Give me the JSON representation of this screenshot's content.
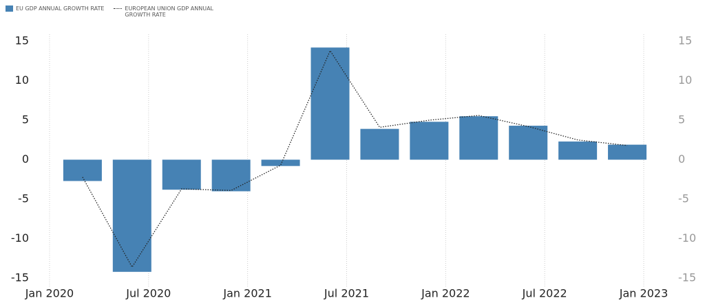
{
  "chart_data": {
    "type": "bar",
    "x": [
      "2020-03",
      "2020-06",
      "2020-09",
      "2020-12",
      "2021-03",
      "2021-06",
      "2021-09",
      "2021-12",
      "2022-03",
      "2022-06",
      "2022-09",
      "2022-12"
    ],
    "series": [
      {
        "name": "EU GDP ANNUAL GROWTH RATE",
        "type": "bar",
        "color": "#4682b4",
        "values": [
          -2.7,
          -14.2,
          -3.8,
          -4.0,
          -0.8,
          14.2,
          3.9,
          4.8,
          5.5,
          4.3,
          2.3,
          1.9
        ]
      },
      {
        "name": "EUROPEAN UNION GDP ANNUAL GROWTH RATE",
        "type": "line",
        "axis": "y2",
        "color": "#222222",
        "values": [
          -2.2,
          -13.6,
          -3.7,
          -3.9,
          -0.7,
          13.8,
          4.1,
          5.0,
          5.6,
          4.2,
          2.5,
          1.8
        ]
      }
    ],
    "xlim": [
      "2019-11",
      "2023-02"
    ],
    "xticks": [
      {
        "value": "2020-01",
        "label": "Jan 2020"
      },
      {
        "value": "2020-07",
        "label": "Jul 2020"
      },
      {
        "value": "2021-01",
        "label": "Jan 2021"
      },
      {
        "value": "2021-07",
        "label": "Jul 2021"
      },
      {
        "value": "2022-01",
        "label": "Jan 2022"
      },
      {
        "value": "2022-07",
        "label": "Jul 2022"
      },
      {
        "value": "2023-01",
        "label": "Jan 2023"
      }
    ],
    "ylim": [
      -15,
      15
    ],
    "yticks": [
      -15,
      -10,
      -5,
      0,
      5,
      10,
      15
    ],
    "y2lim": [
      -15,
      15
    ],
    "y2ticks": [
      -15,
      -10,
      -5,
      0,
      5,
      10,
      15
    ],
    "grid": "x",
    "legend": "top-left"
  }
}
